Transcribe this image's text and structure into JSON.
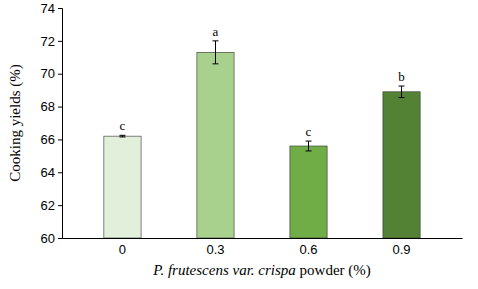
{
  "chart_data": {
    "type": "bar",
    "x_label": "P. frutescens var. crispa powder (%)",
    "y_label": "Cooking yields (%)",
    "categories": [
      "0",
      "0.3",
      "0.6",
      "0.9"
    ],
    "values": [
      66.2,
      71.3,
      65.6,
      68.9
    ],
    "errors": [
      0.05,
      0.7,
      0.3,
      0.35
    ],
    "annotations": [
      "c",
      "a",
      "c",
      "b"
    ],
    "colors": [
      "#e2efda",
      "#a9d18e",
      "#70ad47",
      "#548235"
    ],
    "ylim": [
      60,
      74
    ],
    "yticks": [
      60,
      62,
      64,
      66,
      68,
      70,
      72,
      74
    ],
    "grid": false
  }
}
